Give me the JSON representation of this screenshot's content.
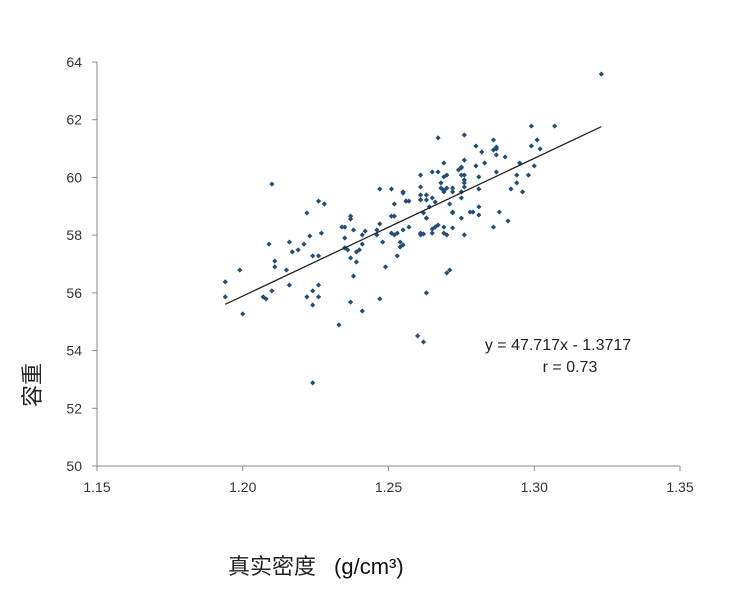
{
  "chart_data": {
    "type": "scatter",
    "title": "",
    "xlabel": "真实密度",
    "xlabel_unit": "(g/cm³)",
    "ylabel": "容重",
    "xlim": [
      1.15,
      1.35
    ],
    "ylim": [
      50,
      64
    ],
    "x_ticks": [
      "1.15",
      "1.20",
      "1.25",
      "1.30",
      "1.35"
    ],
    "y_ticks": [
      "50",
      "52",
      "54",
      "56",
      "58",
      "60",
      "62",
      "64"
    ],
    "grid": false,
    "legend": "none",
    "marker_color": "#1f4e79",
    "trendline": {
      "slope": 47.717,
      "intercept": -1.3717,
      "x_range": [
        1.194,
        1.323
      ],
      "color": "#222222"
    },
    "annotations": {
      "equation": "y = 47.717x - 1.3717",
      "r": "r = 0.73"
    },
    "points": [
      [
        1.21,
        59.77
      ],
      [
        1.194,
        56.38
      ],
      [
        1.194,
        55.86
      ],
      [
        1.2,
        55.27
      ],
      [
        1.199,
        56.79
      ],
      [
        1.209,
        57.69
      ],
      [
        1.211,
        57.1
      ],
      [
        1.211,
        56.9
      ],
      [
        1.21,
        56.07
      ],
      [
        1.207,
        55.86
      ],
      [
        1.208,
        55.79
      ],
      [
        1.216,
        57.76
      ],
      [
        1.217,
        57.42
      ],
      [
        1.219,
        57.49
      ],
      [
        1.221,
        57.69
      ],
      [
        1.222,
        58.77
      ],
      [
        1.223,
        57.97
      ],
      [
        1.224,
        57.28
      ],
      [
        1.226,
        57.28
      ],
      [
        1.215,
        56.79
      ],
      [
        1.216,
        56.27
      ],
      [
        1.222,
        55.86
      ],
      [
        1.224,
        56.07
      ],
      [
        1.226,
        56.27
      ],
      [
        1.226,
        55.86
      ],
      [
        1.224,
        55.58
      ],
      [
        1.224,
        52.88
      ],
      [
        1.226,
        59.18
      ],
      [
        1.228,
        59.08
      ],
      [
        1.227,
        58.07
      ],
      [
        1.233,
        54.89
      ],
      [
        1.234,
        58.28
      ],
      [
        1.235,
        58.28
      ],
      [
        1.237,
        58.66
      ],
      [
        1.237,
        58.56
      ],
      [
        1.235,
        57.9
      ],
      [
        1.238,
        58.18
      ],
      [
        1.235,
        57.56
      ],
      [
        1.236,
        57.49
      ],
      [
        1.237,
        57.21
      ],
      [
        1.239,
        57.07
      ],
      [
        1.238,
        56.58
      ],
      [
        1.239,
        57.42
      ],
      [
        1.24,
        57.49
      ],
      [
        1.241,
        57.69
      ],
      [
        1.241,
        58.01
      ],
      [
        1.242,
        58.14
      ],
      [
        1.237,
        55.68
      ],
      [
        1.241,
        55.37
      ],
      [
        1.246,
        58.18
      ],
      [
        1.246,
        58.01
      ],
      [
        1.247,
        58.39
      ],
      [
        1.248,
        57.76
      ],
      [
        1.249,
        56.9
      ],
      [
        1.247,
        55.79
      ],
      [
        1.247,
        59.6
      ],
      [
        1.251,
        59.6
      ],
      [
        1.252,
        59.08
      ],
      [
        1.251,
        58.66
      ],
      [
        1.252,
        58.66
      ],
      [
        1.255,
        59.5
      ],
      [
        1.256,
        59.18
      ],
      [
        1.251,
        58.07
      ],
      [
        1.252,
        58.01
      ],
      [
        1.253,
        58.07
      ],
      [
        1.255,
        58.18
      ],
      [
        1.254,
        57.76
      ],
      [
        1.255,
        57.66
      ],
      [
        1.254,
        57.59
      ],
      [
        1.253,
        57.28
      ],
      [
        1.27,
        56.69
      ],
      [
        1.271,
        56.79
      ],
      [
        1.263,
        56.0
      ],
      [
        1.26,
        54.51
      ],
      [
        1.262,
        54.3
      ],
      [
        1.323,
        63.58
      ],
      [
        1.299,
        61.78
      ],
      [
        1.307,
        61.78
      ],
      [
        1.301,
        61.3
      ],
      [
        1.299,
        61.09
      ],
      [
        1.302,
        60.99
      ],
      [
        1.267,
        61.37
      ],
      [
        1.276,
        61.47
      ],
      [
        1.28,
        61.09
      ],
      [
        1.282,
        60.88
      ],
      [
        1.286,
        61.3
      ],
      [
        1.287,
        61.05
      ],
      [
        1.287,
        60.99
      ],
      [
        1.286,
        60.95
      ],
      [
        1.287,
        60.78
      ],
      [
        1.29,
        60.71
      ],
      [
        1.283,
        60.5
      ],
      [
        1.28,
        60.4
      ],
      [
        1.276,
        60.6
      ],
      [
        1.275,
        60.36
      ],
      [
        1.275,
        60.33
      ],
      [
        1.274,
        60.26
      ],
      [
        1.295,
        60.5
      ],
      [
        1.3,
        60.4
      ],
      [
        1.287,
        60.19
      ],
      [
        1.294,
        60.08
      ],
      [
        1.298,
        60.08
      ],
      [
        1.281,
        60.02
      ],
      [
        1.294,
        59.81
      ],
      [
        1.292,
        59.6
      ],
      [
        1.296,
        59.5
      ],
      [
        1.281,
        59.6
      ],
      [
        1.281,
        58.98
      ],
      [
        1.281,
        58.7
      ],
      [
        1.278,
        58.8
      ],
      [
        1.279,
        58.8
      ],
      [
        1.288,
        58.8
      ],
      [
        1.291,
        58.49
      ],
      [
        1.286,
        58.28
      ],
      [
        1.276,
        58.01
      ],
      [
        1.275,
        58.59
      ],
      [
        1.272,
        58.25
      ],
      [
        1.269,
        58.28
      ],
      [
        1.269,
        58.07
      ],
      [
        1.27,
        58.01
      ],
      [
        1.265,
        58.21
      ],
      [
        1.266,
        58.28
      ],
      [
        1.267,
        58.35
      ],
      [
        1.265,
        58.07
      ],
      [
        1.261,
        58.07
      ],
      [
        1.261,
        58.01
      ],
      [
        1.262,
        58.04
      ],
      [
        1.257,
        58.28
      ],
      [
        1.255,
        59.46
      ],
      [
        1.256,
        59.18
      ],
      [
        1.257,
        59.18
      ],
      [
        1.261,
        60.08
      ],
      [
        1.261,
        59.67
      ],
      [
        1.261,
        59.39
      ],
      [
        1.261,
        59.22
      ],
      [
        1.263,
        59.39
      ],
      [
        1.263,
        59.22
      ],
      [
        1.265,
        60.19
      ],
      [
        1.267,
        60.19
      ],
      [
        1.269,
        60.5
      ],
      [
        1.269,
        60.02
      ],
      [
        1.27,
        60.08
      ],
      [
        1.268,
        59.81
      ],
      [
        1.268,
        59.63
      ],
      [
        1.269,
        59.56
      ],
      [
        1.269,
        59.5
      ],
      [
        1.27,
        59.63
      ],
      [
        1.272,
        59.63
      ],
      [
        1.272,
        59.5
      ],
      [
        1.275,
        60.08
      ],
      [
        1.276,
        60.08
      ],
      [
        1.276,
        59.91
      ],
      [
        1.276,
        59.81
      ],
      [
        1.276,
        59.67
      ],
      [
        1.275,
        59.5
      ],
      [
        1.275,
        59.29
      ],
      [
        1.271,
        59.08
      ],
      [
        1.265,
        59.29
      ],
      [
        1.266,
        59.15
      ],
      [
        1.264,
        58.98
      ],
      [
        1.262,
        58.77
      ],
      [
        1.263,
        58.59
      ],
      [
        1.263,
        58.59
      ],
      [
        1.272,
        58.8
      ],
      [
        1.272,
        58.77
      ]
    ]
  }
}
